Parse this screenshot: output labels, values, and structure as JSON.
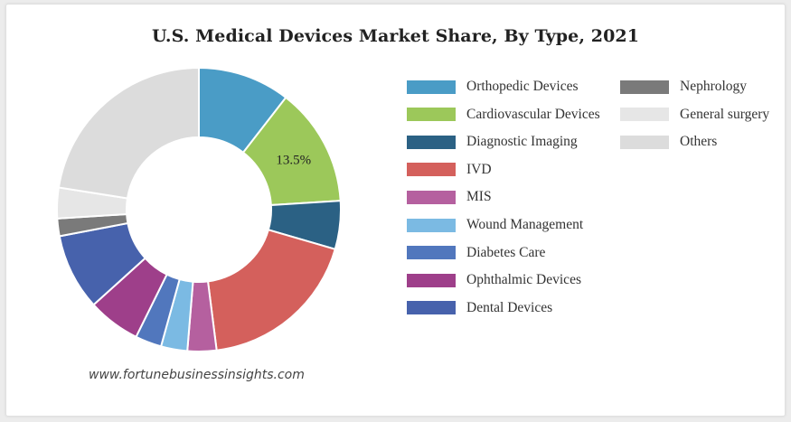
{
  "chart_data": {
    "type": "pie",
    "title": "U.S. Medical Devices Market Share, By Type, 2021",
    "categories": [
      "Orthopedic Devices",
      "Cardiovascular Devices",
      "Diagnostic Imaging",
      "IVD",
      "MIS",
      "Wound Management",
      "Diabetes Care",
      "Ophthalmic Devices",
      "Dental Devices",
      "Nephrology",
      "General surgery",
      "Others"
    ],
    "values": [
      10.5,
      13.5,
      5.5,
      18.5,
      3.3,
      3.0,
      3.0,
      6.0,
      8.7,
      2.0,
      3.5,
      22.5
    ],
    "colors": [
      "#4a9cc6",
      "#9cc85a",
      "#2b6184",
      "#d4605c",
      "#b5609f",
      "#7bbae3",
      "#5177bd",
      "#9e3f8a",
      "#4762ac",
      "#7a7a7a",
      "#e6e6e6",
      "#dcdcdc"
    ],
    "data_labels": [
      "",
      "13.5%",
      "",
      "",
      "",
      "",
      "",
      "",
      "",
      "",
      "",
      ""
    ],
    "legend": "right",
    "legend_columns": 2
  },
  "source": "www.fortunebusinessinsights.com"
}
